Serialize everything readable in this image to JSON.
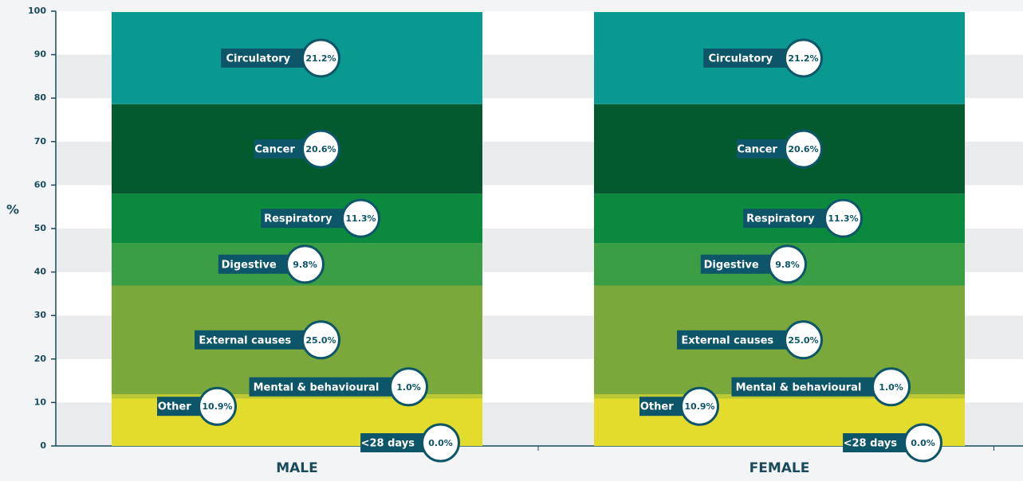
{
  "chart_data": {
    "type": "stacked_bar",
    "y_label": "%",
    "categories": [
      "MALE",
      "FEMALE"
    ],
    "ylim": [
      0,
      100
    ],
    "yticks": [
      0,
      10,
      20,
      30,
      40,
      50,
      60,
      70,
      80,
      90,
      100
    ],
    "series": [
      {
        "name": "<28 days",
        "color": "#e0962a",
        "values": [
          0.0,
          0.0
        ],
        "value_labels": [
          "0.0%",
          "0.0%"
        ]
      },
      {
        "name": "Other",
        "color": "#e3dc2c",
        "values": [
          10.9,
          10.9
        ],
        "value_labels": [
          "10.9%",
          "10.9%"
        ]
      },
      {
        "name": "Mental & behavioural",
        "color": "#bcc933",
        "values": [
          1.0,
          1.0
        ],
        "value_labels": [
          "1.0%",
          "1.0%"
        ]
      },
      {
        "name": "External causes",
        "color": "#7aa83a",
        "values": [
          25.0,
          25.0
        ],
        "value_labels": [
          "25.0%",
          "25.0%"
        ]
      },
      {
        "name": "Digestive",
        "color": "#3a9e45",
        "values": [
          9.8,
          9.8
        ],
        "value_labels": [
          "9.8%",
          "9.8%"
        ]
      },
      {
        "name": "Respiratory",
        "color": "#0b8a3e",
        "values": [
          11.3,
          11.3
        ],
        "value_labels": [
          "11.3%",
          "11.3%"
        ]
      },
      {
        "name": "Cancer",
        "color": "#035a2f",
        "values": [
          20.6,
          20.6
        ],
        "value_labels": [
          "20.6%",
          "20.6%"
        ]
      },
      {
        "name": "Circulatory",
        "color": "#0a9990",
        "values": [
          21.2,
          21.2
        ],
        "value_labels": [
          "21.2%",
          "21.2%"
        ]
      }
    ]
  }
}
